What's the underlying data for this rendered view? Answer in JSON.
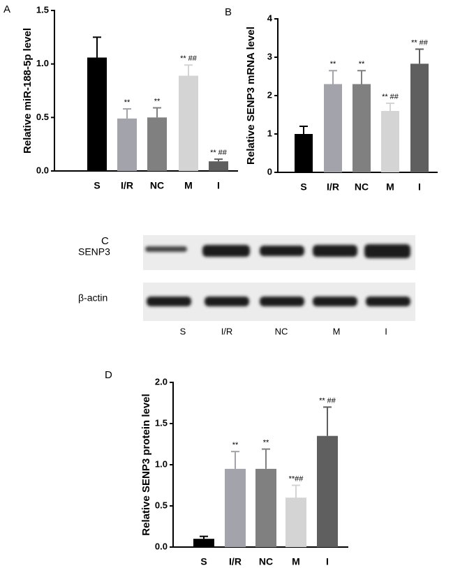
{
  "chart_data": [
    {
      "type": "bar",
      "panel": "A",
      "y_label": "Relative miR-188-5p level",
      "categories": [
        "S",
        "I/R",
        "NC",
        "M",
        "I"
      ],
      "values": [
        1.06,
        0.49,
        0.5,
        0.89,
        0.09
      ],
      "errors": [
        0.19,
        0.09,
        0.09,
        0.1,
        0.02
      ],
      "annotations": [
        null,
        "**",
        "**",
        "** ##",
        "** ##"
      ],
      "colors": [
        "#000000",
        "#a3a3ab",
        "#808080",
        "#d4d4d4",
        "#5f5f5f"
      ],
      "ylim": [
        0,
        1.5
      ],
      "yticks": [
        {
          "value": 0,
          "label": "0.0"
        },
        0.5,
        {
          "value": 1,
          "label": "1.0"
        },
        1.5
      ]
    },
    {
      "type": "bar",
      "panel": "B",
      "y_label": "Relative SENP3 mRNA level",
      "categories": [
        "S",
        "I/R",
        "NC",
        "M",
        "I"
      ],
      "values": [
        1.0,
        2.3,
        2.3,
        1.6,
        2.83
      ],
      "errors": [
        0.2,
        0.35,
        0.35,
        0.2,
        0.38
      ],
      "annotations": [
        null,
        "**",
        "**",
        "** ##",
        "** ##"
      ],
      "colors": [
        "#000000",
        "#a3a3ab",
        "#808080",
        "#d4d4d4",
        "#5f5f5f"
      ],
      "ylim": [
        0,
        4
      ],
      "yticks": [
        0,
        1,
        2,
        3,
        4
      ]
    },
    {
      "type": "bar",
      "panel": "D",
      "y_label": "Relative SENP3 protein level",
      "categories": [
        "S",
        "I/R",
        "NC",
        "M",
        "I"
      ],
      "values": [
        0.1,
        0.95,
        0.95,
        0.6,
        1.35
      ],
      "errors": [
        0.03,
        0.21,
        0.24,
        0.15,
        0.35
      ],
      "annotations": [
        null,
        "**",
        "**",
        "**##",
        "** ##"
      ],
      "colors": [
        "#000000",
        "#a3a3ab",
        "#808080",
        "#d4d4d4",
        "#5f5f5f"
      ],
      "ylim": [
        0,
        2
      ],
      "yticks": [
        {
          "value": 0,
          "label": "0.0"
        },
        0.5,
        {
          "value": 1,
          "label": "1.0"
        },
        1.5,
        {
          "value": 2,
          "label": "2.0"
        }
      ]
    }
  ],
  "blot": {
    "panel": "C",
    "rows": [
      "SENP3",
      "β-actin"
    ],
    "lanes": [
      "S",
      "I/R",
      "NC",
      "M",
      "I"
    ]
  }
}
